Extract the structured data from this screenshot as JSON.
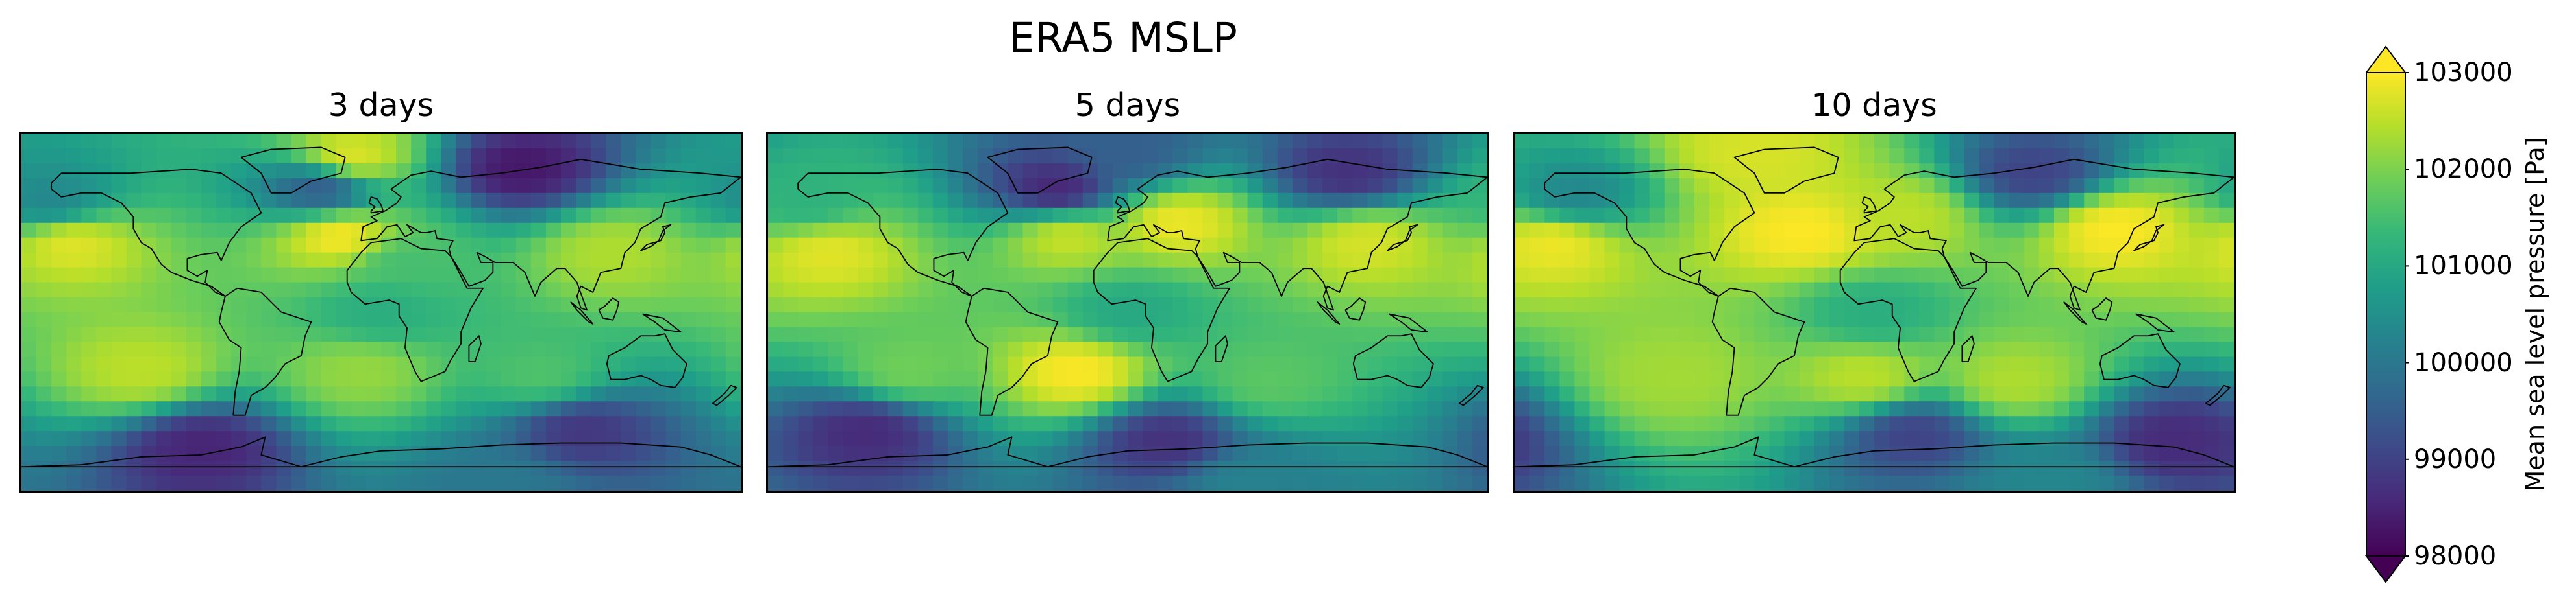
{
  "title": "ERA5 MSLP",
  "colors": {
    "viridis": [
      "#440154",
      "#482878",
      "#3e4989",
      "#31688e",
      "#26828e",
      "#1f9e89",
      "#35b779",
      "#6ece58",
      "#b5de2b",
      "#fde725"
    ],
    "coastline": "#000000"
  },
  "chart_data": [
    {
      "type": "heatmap",
      "title": "3 days",
      "projection": "plate-carree",
      "variable_range": [
        98000,
        103000
      ],
      "regions": [
        {
          "name": "north-pole-high",
          "lon": -15,
          "lat": 78,
          "value": 102800
        },
        {
          "name": "siberia-low",
          "lon": 70,
          "lat": 72,
          "value": 98300
        },
        {
          "name": "iceland-low",
          "lon": -30,
          "lat": 62,
          "value": 99400
        },
        {
          "name": "aleutian-low",
          "lon": -165,
          "lat": 55,
          "value": 100300
        },
        {
          "name": "north-atlantic-high",
          "lon": -20,
          "lat": 38,
          "value": 103000
        },
        {
          "name": "north-pacific-high",
          "lon": -155,
          "lat": 35,
          "value": 102800
        },
        {
          "name": "east-asia-high",
          "lon": 115,
          "lat": 30,
          "value": 102400
        },
        {
          "name": "north-africa",
          "lon": 10,
          "lat": 25,
          "value": 101500
        },
        {
          "name": "tropics",
          "lon": 0,
          "lat": 0,
          "value": 101100
        },
        {
          "name": "south-pacific-high",
          "lon": -120,
          "lat": -30,
          "value": 102500
        },
        {
          "name": "south-atlantic-high",
          "lon": -10,
          "lat": -30,
          "value": 102200
        },
        {
          "name": "indian-ocean-high",
          "lon": 80,
          "lat": -32,
          "value": 101600
        },
        {
          "name": "southern-ocean-low",
          "lon": 100,
          "lat": -60,
          "value": 98800
        },
        {
          "name": "antarctic-trough",
          "lon": -90,
          "lat": -68,
          "value": 98500
        },
        {
          "name": "antarctica",
          "lon": 60,
          "lat": -85,
          "value": 100000
        }
      ]
    },
    {
      "type": "heatmap",
      "title": "5 days",
      "projection": "plate-carree",
      "variable_range": [
        98000,
        103000
      ],
      "regions": [
        {
          "name": "arctic",
          "lon": 0,
          "lat": 80,
          "value": 99500
        },
        {
          "name": "greenland-low",
          "lon": -35,
          "lat": 62,
          "value": 98500
        },
        {
          "name": "siberia-low",
          "lon": 110,
          "lat": 70,
          "value": 98700
        },
        {
          "name": "north-pacific",
          "lon": -160,
          "lat": 55,
          "value": 101200
        },
        {
          "name": "north-atlantic-high",
          "lon": -30,
          "lat": 38,
          "value": 102600
        },
        {
          "name": "europe-high",
          "lon": 25,
          "lat": 45,
          "value": 102900
        },
        {
          "name": "east-asia-high",
          "lon": 120,
          "lat": 35,
          "value": 102700
        },
        {
          "name": "north-pacific-high",
          "lon": -150,
          "lat": 30,
          "value": 102800
        },
        {
          "name": "tropics",
          "lon": 0,
          "lat": 0,
          "value": 101000
        },
        {
          "name": "south-atlantic-high",
          "lon": -25,
          "lat": -30,
          "value": 103000
        },
        {
          "name": "south-pacific-high",
          "lon": -110,
          "lat": -30,
          "value": 101900
        },
        {
          "name": "indian-ocean-high",
          "lon": 70,
          "lat": -35,
          "value": 101700
        },
        {
          "name": "southern-ocean-low",
          "lon": -130,
          "lat": -60,
          "value": 98600
        },
        {
          "name": "antarctic-trough",
          "lon": 20,
          "lat": -65,
          "value": 98700
        },
        {
          "name": "antarctica",
          "lon": 60,
          "lat": -85,
          "value": 100200
        }
      ]
    },
    {
      "type": "heatmap",
      "title": "10 days",
      "projection": "plate-carree",
      "variable_range": [
        98000,
        103000
      ],
      "regions": [
        {
          "name": "arctic-high",
          "lon": -60,
          "lat": 80,
          "value": 102700
        },
        {
          "name": "siberia-low",
          "lon": 80,
          "lat": 70,
          "value": 99000
        },
        {
          "name": "north-pacific-low",
          "lon": -150,
          "lat": 58,
          "value": 100300
        },
        {
          "name": "north-atlantic-high",
          "lon": -35,
          "lat": 40,
          "value": 103000
        },
        {
          "name": "north-pacific-high",
          "lon": -160,
          "lat": 35,
          "value": 102900
        },
        {
          "name": "east-asia-high",
          "lon": 120,
          "lat": 42,
          "value": 103000
        },
        {
          "name": "europe-high",
          "lon": 15,
          "lat": 48,
          "value": 102500
        },
        {
          "name": "tropics",
          "lon": 0,
          "lat": 0,
          "value": 101100
        },
        {
          "name": "south-pacific-high",
          "lon": -100,
          "lat": -32,
          "value": 102300
        },
        {
          "name": "south-atlantic-high",
          "lon": -5,
          "lat": -33,
          "value": 102500
        },
        {
          "name": "indian-ocean-high",
          "lon": 70,
          "lat": -35,
          "value": 102400
        },
        {
          "name": "southern-ocean-low",
          "lon": 20,
          "lat": -62,
          "value": 99000
        },
        {
          "name": "antarctic-trough",
          "lon": 150,
          "lat": -65,
          "value": 98600
        },
        {
          "name": "antarctica",
          "lon": 90,
          "lat": -85,
          "value": 100300
        }
      ]
    }
  ],
  "colorbar": {
    "label": "Mean sea level pressure [Pa]",
    "ticks": [
      "98000",
      "99000",
      "100000",
      "101000",
      "102000",
      "103000"
    ],
    "tick_values": [
      98000,
      99000,
      100000,
      101000,
      102000,
      103000
    ],
    "vmin": 98000,
    "vmax": 103000,
    "extend": "both"
  }
}
